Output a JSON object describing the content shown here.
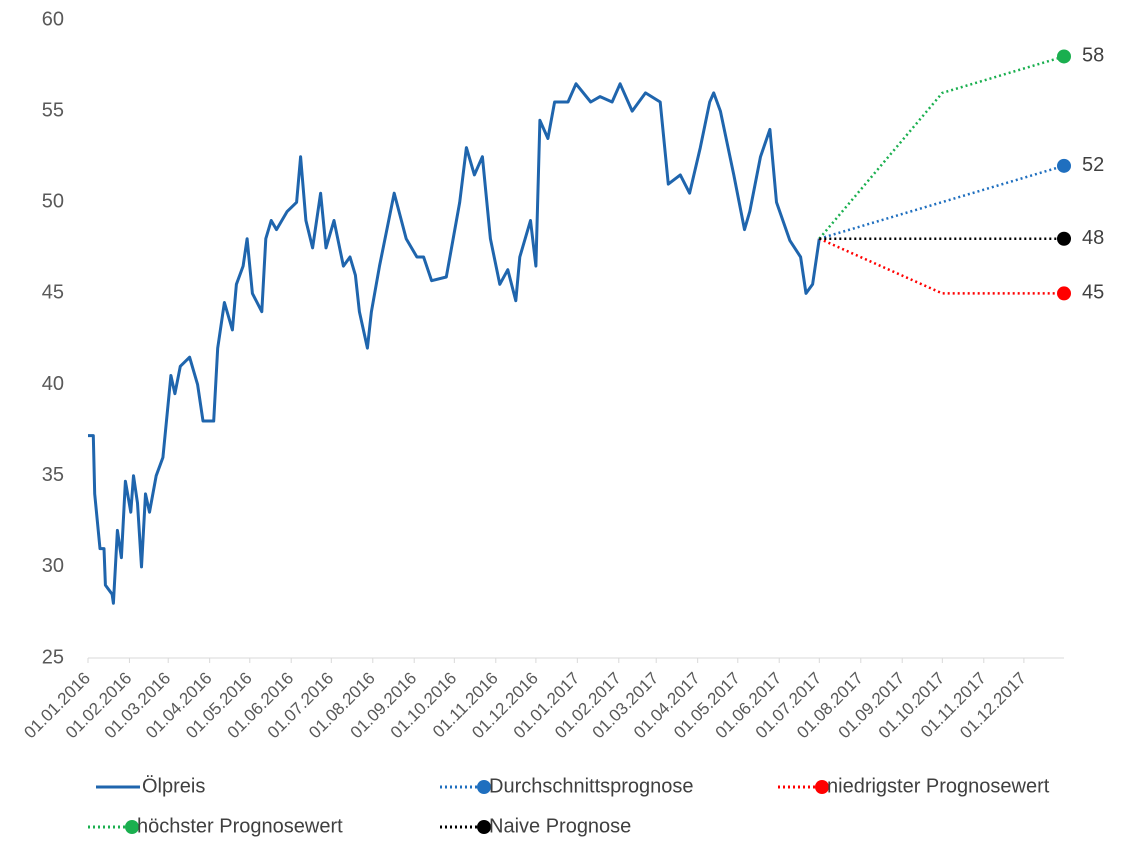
{
  "chart_data": {
    "type": "line",
    "xlim": [
      "01.01.2016",
      "31.12.2017"
    ],
    "xticks": [
      "01.01.2016",
      "01.02.2016",
      "01.03.2016",
      "01.04.2016",
      "01.05.2016",
      "01.06.2016",
      "01.07.2016",
      "01.08.2016",
      "01.09.2016",
      "01.10.2016",
      "01.11.2016",
      "01.12.2016",
      "01.01.2017",
      "01.02.2017",
      "01.03.2017",
      "01.04.2017",
      "01.05.2017",
      "01.06.2017",
      "01.07.2017",
      "01.08.2017",
      "01.09.2017",
      "01.10.2017",
      "01.11.2017",
      "01.12.2017"
    ],
    "ylim": [
      25,
      60
    ],
    "yticks": [
      25,
      30,
      35,
      40,
      45,
      50,
      55,
      60
    ],
    "series": [
      {
        "name": "Ölpreis",
        "color": "#1f65ad",
        "style": "solid",
        "x": [
          "01.01.2016",
          "05.01.2016",
          "06.01.2016",
          "10.01.2016",
          "13.01.2016",
          "14.01.2016",
          "19.01.2016",
          "20.01.2016",
          "23.01.2016",
          "26.01.2016",
          "29.01.2016",
          "02.02.2016",
          "04.02.2016",
          "07.02.2016",
          "10.02.2016",
          "13.02.2016",
          "16.02.2016",
          "21.02.2016",
          "26.02.2016",
          "03.03.2016",
          "06.03.2016",
          "10.03.2016",
          "17.03.2016",
          "23.03.2016",
          "27.03.2016",
          "04.04.2016",
          "07.04.2016",
          "12.04.2016",
          "18.04.2016",
          "21.04.2016",
          "26.04.2016",
          "29.04.2016",
          "03.05.2016",
          "10.05.2016",
          "13.05.2016",
          "17.05.2016",
          "21.05.2016",
          "29.05.2016",
          "05.06.2016",
          "08.06.2016",
          "12.06.2016",
          "17.06.2016",
          "23.06.2016",
          "27.06.2016",
          "03.07.2016",
          "10.07.2016",
          "15.07.2016",
          "19.07.2016",
          "22.07.2016",
          "28.07.2016",
          "31.07.2016",
          "06.08.2016",
          "17.08.2016",
          "26.08.2016",
          "03.09.2016",
          "08.09.2016",
          "14.09.2016",
          "25.09.2016",
          "05.10.2016",
          "10.10.2016",
          "16.10.2016",
          "22.10.2016",
          "28.10.2016",
          "04.11.2016",
          "10.11.2016",
          "16.11.2016",
          "19.11.2016",
          "27.11.2016",
          "01.12.2016",
          "04.12.2016",
          "10.12.2016",
          "15.12.2016",
          "25.12.2016",
          "31.12.2016",
          "11.01.2017",
          "18.01.2017",
          "27.01.2017",
          "02.02.2017",
          "11.02.2017",
          "21.02.2017",
          "04.03.2017",
          "10.03.2017",
          "19.03.2017",
          "26.03.2017",
          "03.04.2017",
          "10.04.2017",
          "13.04.2017",
          "18.04.2017",
          "28.04.2017",
          "06.05.2017",
          "10.05.2017",
          "18.05.2017",
          "25.05.2017",
          "30.05.2017",
          "09.06.2017",
          "17.06.2017",
          "21.06.2017",
          "26.06.2017",
          "01.07.2017"
        ],
        "values": [
          37.2,
          37.2,
          34,
          31,
          31,
          29,
          28.5,
          28,
          32,
          30.5,
          34.7,
          33,
          35,
          33.5,
          30,
          34,
          33,
          35,
          36,
          40.5,
          39.5,
          41,
          41.5,
          40,
          38,
          38,
          42,
          44.5,
          43,
          45.5,
          46.5,
          48,
          45,
          44,
          48,
          49,
          48.5,
          49.5,
          50,
          52.5,
          49,
          47.5,
          50.5,
          47.5,
          49,
          46.5,
          47,
          46,
          44,
          42,
          44,
          46.5,
          50.5,
          48,
          47,
          47,
          45.7,
          45.9,
          50,
          53,
          51.5,
          52.5,
          48,
          45.5,
          46.3,
          44.6,
          47,
          49,
          46.5,
          54.5,
          53.5,
          55.5,
          55.5,
          56.5,
          55.5,
          55.8,
          55.5,
          56.5,
          55,
          56,
          55.5,
          51,
          51.5,
          50.5,
          53,
          55.5,
          56,
          55,
          51.5,
          48.5,
          49.5,
          52.5,
          54,
          50,
          47.9,
          47,
          45,
          45.5,
          48
        ]
      },
      {
        "name": "Durchschnittsprognose",
        "color": "#1f6fbf",
        "style": "dotted",
        "x": [
          "01.07.2017",
          "31.12.2017"
        ],
        "values": [
          48,
          52
        ]
      },
      {
        "name": "niedrigster Prognosewert",
        "color": "#ff0000",
        "style": "dotted",
        "x": [
          "01.07.2017",
          "01.10.2017",
          "31.12.2017"
        ],
        "values": [
          48,
          45,
          45
        ]
      },
      {
        "name": "höchster Prognosewert",
        "color": "#1aaf4f",
        "style": "dotted",
        "x": [
          "01.07.2017",
          "01.10.2017",
          "31.12.2017"
        ],
        "values": [
          48,
          56,
          58
        ]
      },
      {
        "name": "Naive Prognose",
        "color": "#000000",
        "style": "dotted",
        "x": [
          "01.07.2017",
          "31.12.2017"
        ],
        "values": [
          48,
          48
        ]
      }
    ]
  }
}
